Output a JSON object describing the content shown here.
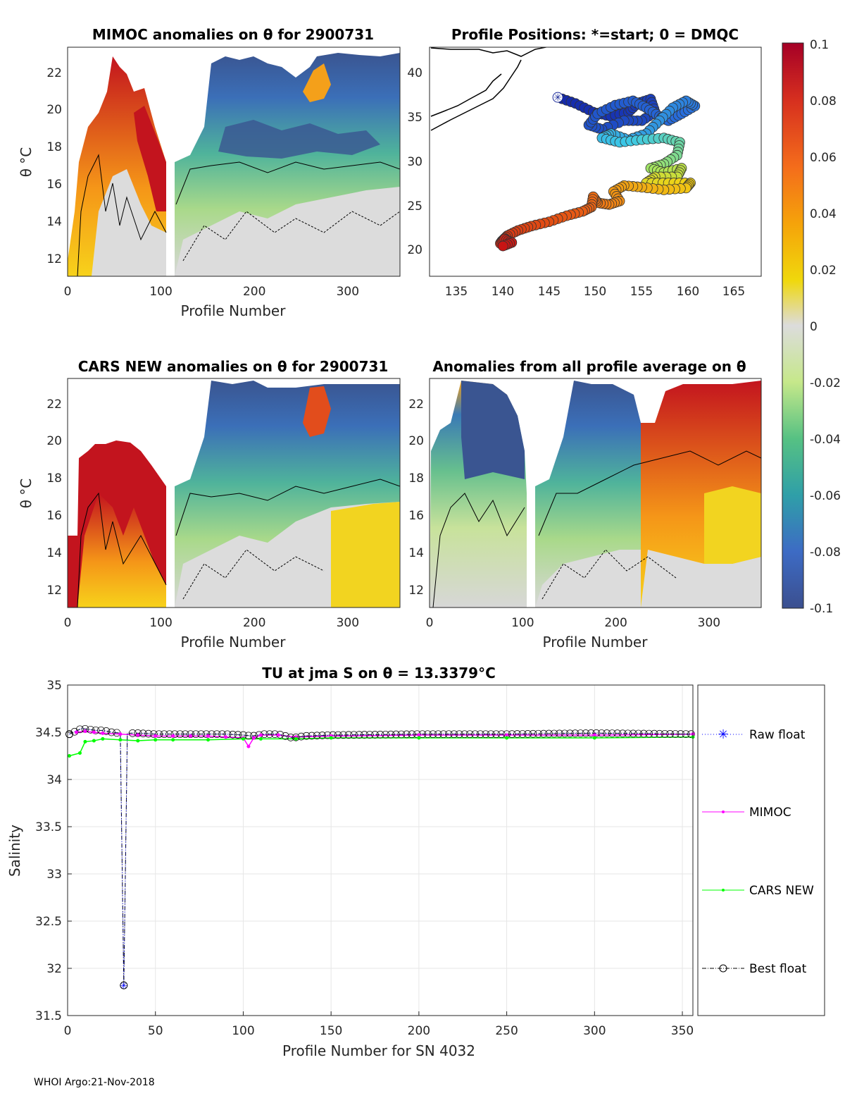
{
  "figure": {
    "footer": "WHOI Argo:21-Nov-2018",
    "float_id": "2900731"
  },
  "panels": {
    "mimoc": {
      "title": "MIMOC anomalies on θ  for 2900731",
      "xlabel": "Profile Number",
      "ylabel": "θ °C",
      "xticks": [
        "0",
        "100",
        "200",
        "300"
      ],
      "yticks": [
        "12",
        "14",
        "16",
        "18",
        "20",
        "22"
      ]
    },
    "positions": {
      "title": "Profile Positions: *=start; 0 = DMQC",
      "xticks": [
        "135",
        "140",
        "145",
        "150",
        "155",
        "160",
        "165"
      ],
      "yticks": [
        "20",
        "25",
        "30",
        "35",
        "40"
      ]
    },
    "cars": {
      "title": "CARS NEW anomalies on θ for 2900731",
      "xlabel": "Profile Number",
      "ylabel": "θ °C",
      "xticks": [
        "0",
        "100",
        "200",
        "300"
      ],
      "yticks": [
        "12",
        "14",
        "16",
        "18",
        "20",
        "22"
      ]
    },
    "avg": {
      "title": "Anomalies from all profile average on θ",
      "xlabel": "Profile Number",
      "xticks": [
        "0",
        "100",
        "200",
        "300"
      ],
      "yticks": [
        "12",
        "14",
        "16",
        "18",
        "20",
        "22"
      ]
    }
  },
  "colorbar": {
    "ticks": [
      "0.1",
      "0.08",
      "0.06",
      "0.04",
      "0.02",
      "0",
      "-0.02",
      "-0.04",
      "-0.06",
      "-0.08",
      "-0.1"
    ]
  },
  "colors": {
    "raw": "#0000ff",
    "mimoc": "#ff00ff",
    "cars": "#00ff00",
    "best": "#000000",
    "grid": "#e6e6e6"
  },
  "chart_data": [
    {
      "type": "heatmap",
      "title": "MIMOC anomalies on θ  for 2900731",
      "xlabel": "Profile Number",
      "ylabel": "θ °C",
      "xlim": [
        0,
        356
      ],
      "ylim": [
        11,
        23.3
      ],
      "clim": [
        -0.1,
        0.1
      ]
    },
    {
      "type": "scatter",
      "title": "Profile Positions: *=start; 0 = DMQC",
      "xlim": [
        130.5,
        168
      ],
      "ylim": [
        17,
        43.5
      ],
      "start": [
        145,
        37.7
      ],
      "track": [
        [
          145,
          37.7
        ],
        [
          147,
          37
        ],
        [
          149,
          36
        ],
        [
          151,
          35.5
        ],
        [
          153,
          36
        ],
        [
          154,
          37
        ],
        [
          155.5,
          37.5
        ],
        [
          156,
          36
        ],
        [
          154.5,
          35
        ],
        [
          152.5,
          35
        ],
        [
          150,
          34
        ],
        [
          148.5,
          34.5
        ],
        [
          149.5,
          35.8
        ],
        [
          151.5,
          36.8
        ],
        [
          153.5,
          37.3
        ],
        [
          155,
          36.5
        ],
        [
          156.5,
          35.5
        ],
        [
          157.5,
          35
        ],
        [
          159,
          35.8
        ],
        [
          160.5,
          36.7
        ],
        [
          159.5,
          37.3
        ],
        [
          158,
          36.5
        ],
        [
          156.5,
          35
        ],
        [
          155,
          33.5
        ],
        [
          153,
          32.8
        ],
        [
          151,
          33.5
        ],
        [
          150,
          33
        ],
        [
          152,
          32.5
        ],
        [
          154.5,
          32.8
        ],
        [
          157,
          33
        ],
        [
          158.8,
          32.5
        ],
        [
          158.5,
          31
        ],
        [
          157,
          30
        ],
        [
          155.5,
          29.5
        ],
        [
          157,
          29
        ],
        [
          159,
          29.5
        ],
        [
          158.5,
          28.5
        ],
        [
          156,
          28.5
        ],
        [
          155,
          27.8
        ],
        [
          157.5,
          27.8
        ],
        [
          160,
          27.8
        ],
        [
          159.5,
          27.2
        ],
        [
          157,
          27
        ],
        [
          154.5,
          27.3
        ],
        [
          152.5,
          27.5
        ],
        [
          151.3,
          26.8
        ],
        [
          152,
          25.7
        ],
        [
          150.8,
          25.3
        ],
        [
          149.5,
          25.5
        ],
        [
          149,
          26.2
        ],
        [
          148.8,
          25
        ],
        [
          147.8,
          24.5
        ],
        [
          146,
          24
        ],
        [
          144,
          23.3
        ],
        [
          142,
          22.8
        ],
        [
          140.5,
          22.3
        ],
        [
          139.3,
          21.7
        ],
        [
          138.7,
          21.1
        ],
        [
          138.5,
          20.8
        ],
        [
          139,
          21.3
        ],
        [
          139.8,
          20.9
        ],
        [
          138.8,
          20.5
        ]
      ],
      "colorscale": "profile index, blue (start) to red (end)"
    },
    {
      "type": "heatmap",
      "title": "CARS NEW anomalies on θ for 2900731",
      "xlabel": "Profile Number",
      "ylabel": "θ °C",
      "xlim": [
        0,
        356
      ],
      "ylim": [
        11,
        23.3
      ],
      "clim": [
        -0.1,
        0.1
      ]
    },
    {
      "type": "heatmap",
      "title": "Anomalies from all profile average on θ",
      "xlabel": "Profile Number",
      "xlim": [
        0,
        356
      ],
      "ylim": [
        11,
        23.3
      ],
      "clim": [
        -0.1,
        0.1
      ]
    },
    {
      "type": "line",
      "title": "TU at jma S on θ = 13.3379°C",
      "xlabel": "Profile Number for SN 4032",
      "ylabel": "Salinity",
      "xlim": [
        0,
        356
      ],
      "ylim": [
        31.5,
        35
      ],
      "xticks": [
        "0",
        "50",
        "100",
        "150",
        "200",
        "250",
        "300",
        "350"
      ],
      "yticks": [
        "31.5",
        "32",
        "32.5",
        "33",
        "33.5",
        "34",
        "34.5",
        "35"
      ],
      "legend": [
        "Raw float",
        "MIMOC",
        "CARS NEW",
        "Best float"
      ],
      "legend_position": "outside-right",
      "series": [
        {
          "name": "Raw float",
          "x": [
            1,
            8,
            12,
            16,
            20,
            25,
            30,
            32,
            34,
            40,
            50,
            60,
            70,
            80,
            90,
            100,
            105,
            112,
            120,
            128,
            135,
            150,
            200,
            250,
            300,
            356
          ],
          "y": [
            34.48,
            34.54,
            34.53,
            34.52,
            34.52,
            34.5,
            34.49,
            31.82,
            34.49,
            34.49,
            34.48,
            34.48,
            34.48,
            34.48,
            34.48,
            34.47,
            34.46,
            34.48,
            34.48,
            34.44,
            34.46,
            34.47,
            34.48,
            34.48,
            34.49,
            34.48
          ]
        },
        {
          "name": "MIMOC",
          "x": [
            5,
            10,
            15,
            20,
            30,
            40,
            50,
            60,
            70,
            80,
            90,
            100,
            103,
            106,
            110,
            120,
            130,
            150,
            200,
            250,
            300,
            356
          ],
          "y": [
            34.5,
            34.51,
            34.5,
            34.49,
            34.48,
            34.47,
            34.46,
            34.46,
            34.46,
            34.46,
            34.45,
            34.44,
            34.35,
            34.44,
            34.47,
            34.47,
            34.45,
            34.46,
            34.47,
            34.47,
            34.47,
            34.48
          ]
        },
        {
          "name": "CARS NEW",
          "x": [
            1,
            7,
            10,
            15,
            20,
            30,
            40,
            50,
            60,
            80,
            100,
            110,
            130,
            150,
            200,
            250,
            300,
            356
          ],
          "y": [
            34.25,
            34.28,
            34.4,
            34.41,
            34.43,
            34.42,
            34.41,
            34.42,
            34.42,
            34.42,
            34.43,
            34.43,
            34.43,
            34.44,
            34.44,
            34.44,
            34.44,
            34.45
          ]
        },
        {
          "name": "Best float",
          "x": [
            1,
            8,
            12,
            16,
            20,
            25,
            30,
            32,
            34,
            40,
            50,
            60,
            70,
            80,
            90,
            100,
            105,
            112,
            120,
            128,
            135,
            150,
            200,
            250,
            300,
            356
          ],
          "y": [
            34.48,
            34.54,
            34.53,
            34.52,
            34.52,
            34.5,
            34.49,
            31.82,
            34.49,
            34.49,
            34.48,
            34.48,
            34.48,
            34.48,
            34.48,
            34.47,
            34.46,
            34.48,
            34.48,
            34.44,
            34.46,
            34.47,
            34.48,
            34.48,
            34.49,
            34.48
          ]
        }
      ]
    }
  ]
}
